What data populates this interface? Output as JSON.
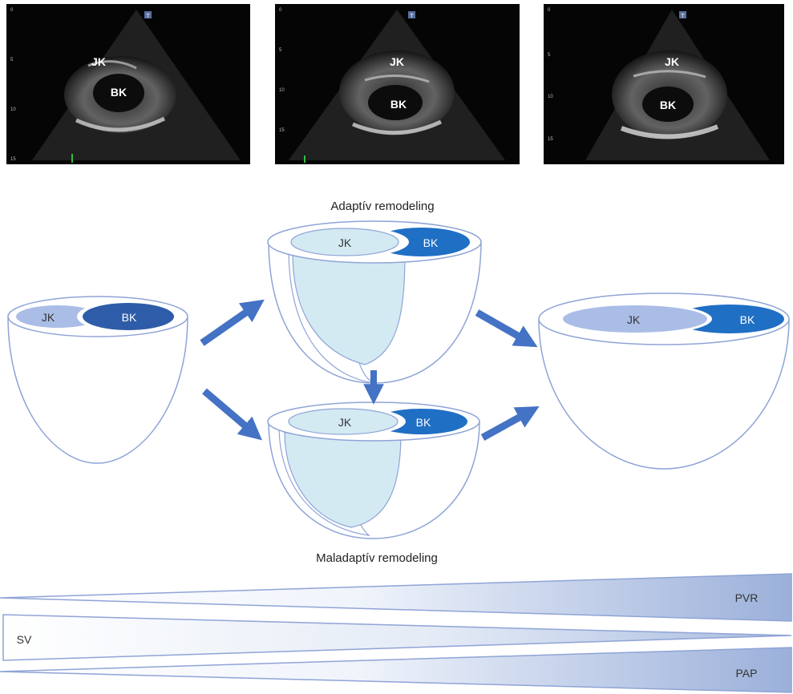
{
  "echo_images": [
    {
      "labels": {
        "top": "JK",
        "bottom": "BK"
      },
      "marker": "T",
      "scale": [
        "0",
        "5",
        "10",
        "15"
      ]
    },
    {
      "labels": {
        "top": "JK",
        "bottom": "BK"
      },
      "marker": "T",
      "scale": [
        "0",
        "5",
        "10",
        "15"
      ]
    },
    {
      "labels": {
        "top": "JK",
        "bottom": "BK"
      },
      "marker": "T",
      "scale": [
        "0",
        "5",
        "10",
        "15"
      ]
    }
  ],
  "diagram": {
    "adaptive_title": "Adaptív remodeling",
    "maladaptive_title": "Maladaptív remodeling",
    "hearts": {
      "normal": {
        "rv": "JK",
        "lv": "BK"
      },
      "adaptive": {
        "rv": "JK",
        "lv": "BK"
      },
      "maladaptive": {
        "rv": "JK",
        "lv": "BK"
      },
      "end_stage": {
        "rv": "JK",
        "lv": "BK"
      }
    }
  },
  "gradients": {
    "pvr": "PVR",
    "sv": "SV",
    "pap": "PAP"
  },
  "colors": {
    "outline": "#8fa4d6",
    "arrow": "#4472c4",
    "lv_dark": "#2e5ca8",
    "lv_bright": "#1f6fc4",
    "rv_light": "#aabde6",
    "cavity": "#d3eaf3",
    "gradient_end": "#9bb0da"
  }
}
